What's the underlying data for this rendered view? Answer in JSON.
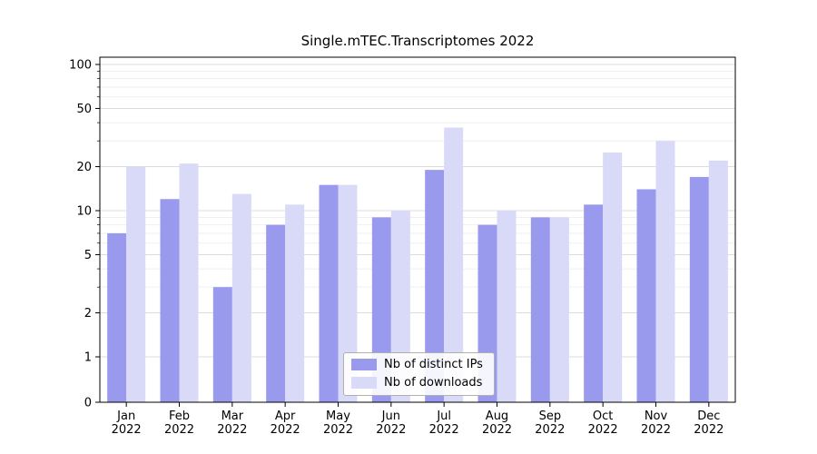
{
  "chart_data": {
    "type": "bar",
    "title": "Single.mTEC.Transcriptomes 2022",
    "categories": [
      "Jan",
      "Feb",
      "Mar",
      "Apr",
      "May",
      "Jun",
      "Jul",
      "Aug",
      "Sep",
      "Oct",
      "Nov",
      "Dec"
    ],
    "category_year": "2022",
    "series": [
      {
        "name": "Nb of distinct IPs",
        "color": "#9999ee",
        "values": [
          7,
          12,
          3,
          8,
          15,
          9,
          19,
          8,
          9,
          11,
          14,
          17
        ]
      },
      {
        "name": "Nb of downloads",
        "color": "#d9d9f8",
        "values": [
          20,
          21,
          13,
          11,
          15,
          10,
          37,
          10,
          9,
          25,
          30,
          22
        ]
      }
    ],
    "xlabel": "",
    "ylabel": "",
    "yscale": "symlog",
    "ylim": [
      0,
      112
    ],
    "y_ticks": [
      0,
      1,
      2,
      5,
      10,
      20,
      50,
      100
    ],
    "y_minor_ticks": [
      3,
      4,
      6,
      7,
      8,
      9,
      30,
      40,
      60,
      70,
      80,
      90
    ],
    "grid": "horizontal",
    "legend_position": "lower center"
  },
  "colors": {
    "axis": "#000000",
    "major_grid": "#dcdcdc",
    "minor_grid": "#efefef",
    "background": "#ffffff",
    "legend_border": "#b0b0b0"
  }
}
